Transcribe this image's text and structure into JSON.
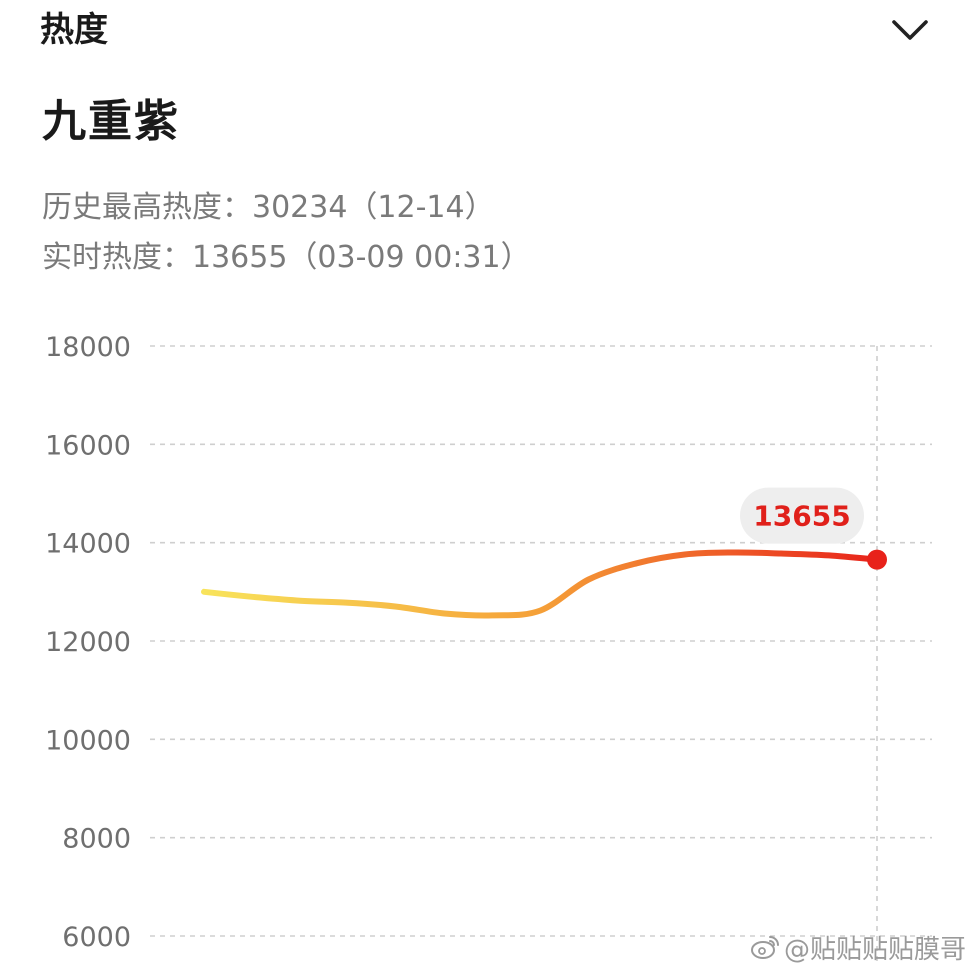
{
  "header": {
    "title": "热度",
    "collapse_icon": "chevron-down-icon"
  },
  "topic": {
    "name": "九重紫"
  },
  "stats": {
    "peak_text": "历史最高热度：30234（12-14）",
    "live_text": "实时热度：13655（03-09 00:31）"
  },
  "colors": {
    "line_start": "#f8e45c",
    "line_mid": "#f5a038",
    "line_end": "#e8221a",
    "highlight_point": "#e8221a",
    "highlight_label": "#e0201a",
    "highlight_pill": "#eeeeee",
    "grid": "#cfcfcf",
    "tick_text": "#6f6f6f"
  },
  "chart_data": {
    "type": "line",
    "title": "",
    "xlabel": "",
    "ylabel": "",
    "ylim": [
      6000,
      18000
    ],
    "y_ticks": [
      "18000",
      "16000",
      "14000",
      "12000",
      "10000",
      "8000",
      "6000"
    ],
    "grid": true,
    "legend": "none",
    "series": [
      {
        "values": [
          13000,
          12900,
          12820,
          12780,
          12700,
          12560,
          12520,
          12620,
          13250,
          13580,
          13760,
          13800,
          13780,
          13740,
          13655
        ]
      }
    ],
    "highlight": {
      "label": "13655",
      "value": 13655,
      "index": 14
    }
  },
  "watermark": {
    "icon": "weibo-logo-icon",
    "text": "@贴贴贴贴膜哥"
  }
}
